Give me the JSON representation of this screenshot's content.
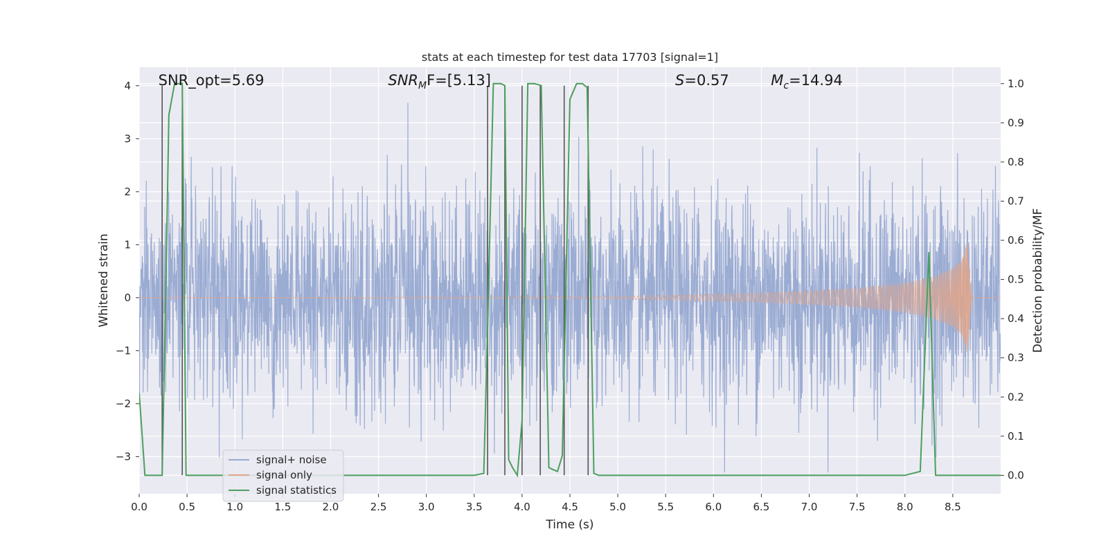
{
  "chart_data": {
    "type": "line",
    "title": "stats at each timestep for test data 17703 [signal=1]",
    "xlabel": "Time (s)",
    "ylabel": "Whitened strain",
    "ylabel_right": "Detection probability/MF",
    "xlim": [
      0.0,
      9.0
    ],
    "ylim": [
      -3.7,
      4.35
    ],
    "ylim_right": [
      -0.047,
      1.042
    ],
    "x_ticks": [
      "0.0",
      "0.5",
      "1.0",
      "1.5",
      "2.0",
      "2.5",
      "3.0",
      "3.5",
      "4.0",
      "4.5",
      "5.0",
      "5.5",
      "6.0",
      "6.5",
      "7.0",
      "7.5",
      "8.0",
      "8.5"
    ],
    "y_ticks": [
      "−3",
      "−2",
      "−1",
      "0",
      "1",
      "2",
      "3",
      "4"
    ],
    "y_ticks_right": [
      "0.0",
      "0.1",
      "0.2",
      "0.3",
      "0.4",
      "0.5",
      "0.6",
      "0.7",
      "0.8",
      "0.9",
      "1.0"
    ],
    "grid": true,
    "legend": "lower-left",
    "annotations": [
      {
        "text": "SNR_opt=5.69",
        "x": 0.2,
        "y": 4.05
      },
      {
        "sym": "SNR",
        "sub": "M",
        "tail": "F=[5.13]",
        "x": 2.6,
        "y": 4.05
      },
      {
        "sym": "S",
        "sub": "",
        "tail": "=0.57",
        "x": 5.6,
        "y": 4.05
      },
      {
        "sym": "M",
        "sub": "c",
        "tail": "=14.94",
        "x": 6.6,
        "y": 4.05
      }
    ],
    "series": [
      {
        "name": "signal+ noise",
        "color": "#97a9d1",
        "description": "whitened strain with Gaussian-like noise, range roughly -3.3 to 4.0",
        "noise_sigma": 1.0
      },
      {
        "name": "signal only",
        "color": "#e0a58a",
        "description": "chirp signal, amplitude growing toward merger",
        "amplitude_points": {
          "t": [
            0.0,
            4.9,
            5.5,
            6.0,
            6.5,
            7.0,
            7.5,
            8.0,
            8.3,
            8.5,
            8.6,
            8.65,
            8.7
          ],
          "a": [
            0.0,
            0.02,
            0.05,
            0.07,
            0.09,
            0.13,
            0.18,
            0.28,
            0.4,
            0.55,
            0.75,
            1.05,
            0.0
          ]
        }
      },
      {
        "name": "signal statistics",
        "color": "#4c9e5c",
        "axis": "right",
        "x": [
          0.0,
          0.06,
          0.24,
          0.28,
          0.31,
          0.37,
          0.45,
          0.49,
          0.8,
          1.0,
          2.0,
          3.0,
          3.5,
          3.6,
          3.64,
          3.7,
          3.74,
          3.78,
          3.82,
          3.86,
          3.9,
          3.95,
          4.0,
          4.06,
          4.13,
          4.2,
          4.28,
          4.32,
          4.37,
          4.42,
          4.5,
          4.57,
          4.63,
          4.68,
          4.75,
          4.8,
          4.9,
          5.0,
          6.0,
          7.0,
          7.5,
          8.0,
          8.16,
          8.25,
          8.32,
          8.5,
          9.0
        ],
        "y": [
          0.21,
          0.0,
          0.0,
          0.5,
          0.92,
          1.0,
          1.0,
          0.0,
          0.0,
          0.0,
          0.0,
          0.0,
          0.0,
          0.005,
          0.38,
          1.0,
          1.0,
          1.0,
          0.995,
          0.04,
          0.02,
          0.0,
          0.14,
          1.0,
          1.0,
          0.995,
          0.02,
          0.015,
          0.01,
          0.05,
          0.96,
          1.0,
          1.0,
          0.99,
          0.005,
          0.0,
          0.0,
          0.0,
          0.0,
          0.0,
          0.0,
          0.0,
          0.01,
          0.57,
          0.0,
          0.0,
          0.0
        ]
      }
    ],
    "vertical_lines": {
      "color": "#555555",
      "x": [
        0.24,
        0.45,
        3.64,
        3.82,
        4.0,
        4.19,
        4.44,
        4.69
      ],
      "y_range": [
        -3.35,
        4.0
      ]
    }
  }
}
